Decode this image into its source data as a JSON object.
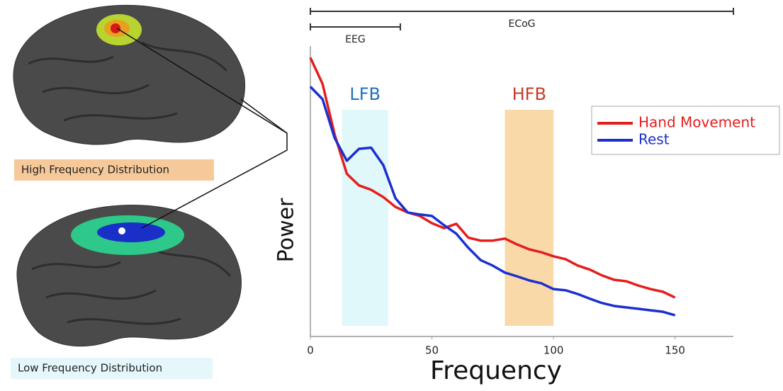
{
  "chart_data": {
    "type": "line",
    "x": [
      0,
      5,
      10,
      15,
      20,
      25,
      30,
      35,
      40,
      45,
      50,
      55,
      60,
      65,
      70,
      75,
      80,
      85,
      90,
      95,
      100,
      105,
      110,
      115,
      120,
      125,
      130,
      135,
      140,
      145,
      150
    ],
    "series": [
      {
        "name": "Hand Movement",
        "color": "#e41e1e",
        "values": [
          96,
          87,
          69.5,
          56,
          52,
          50.5,
          48,
          44.6,
          42.7,
          41.5,
          39,
          37.3,
          38.8,
          34,
          33,
          33,
          33.7,
          31.7,
          30,
          29,
          27.6,
          26.6,
          24.4,
          23,
          21,
          19.5,
          19,
          17.5,
          16.3,
          15.4,
          13.4
        ]
      },
      {
        "name": "Rest",
        "color": "#1b2fd0",
        "values": [
          86,
          81.7,
          68.3,
          60.5,
          64.6,
          65,
          59,
          47.6,
          42.7,
          42,
          41.5,
          38.3,
          35.4,
          30.5,
          26.3,
          24.4,
          22,
          20.7,
          19.3,
          18.3,
          16.3,
          15.9,
          14.6,
          13,
          11.5,
          10.5,
          10,
          9.5,
          9,
          8.5,
          7.3
        ]
      }
    ],
    "xlim": [
      0,
      174
    ],
    "ylim": [
      0,
      100
    ],
    "xticks": [
      0,
      50,
      100,
      150
    ],
    "xlabel": "Frequency",
    "ylabel": "Power",
    "legend": "upper right",
    "bands": [
      {
        "label": "LFB",
        "range": [
          13,
          32
        ],
        "color": "#e0f8fa",
        "label_color": "#1f6fc4"
      },
      {
        "label": "HFB",
        "range": [
          80,
          100
        ],
        "color": "#f9d9a8",
        "label_color": "#c83a2a"
      }
    ],
    "ranges": [
      {
        "label": "ECoG",
        "range": [
          0,
          174
        ]
      },
      {
        "label": "EEG",
        "range": [
          0,
          37
        ]
      }
    ]
  },
  "figure": {
    "panels": [
      {
        "label": "High Frequency Distribution",
        "color": "#f6c99a"
      },
      {
        "label": "Low Frequency Distribution",
        "color": "#e6f7fb"
      }
    ]
  }
}
